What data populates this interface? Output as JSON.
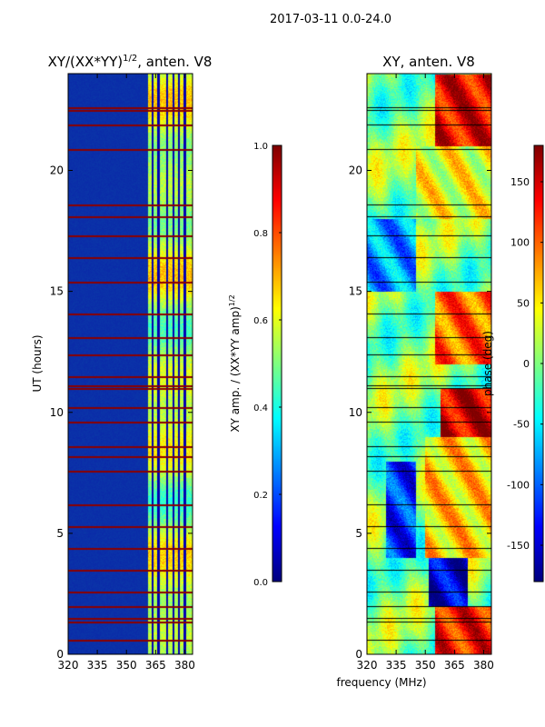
{
  "figure_title": "2017-03-11 0.0-24.0",
  "colors": {
    "jet": [
      "#00007f",
      "#0000ff",
      "#007fff",
      "#00ffff",
      "#7fff7f",
      "#ffff00",
      "#ff7f00",
      "#ff0000",
      "#7f0000"
    ],
    "background_amp": "#0a2aa8",
    "flag_amp": "#8b0000",
    "flag_phase": "#000000"
  },
  "chart_data": [
    {
      "type": "heatmap",
      "title_base": "XY/(XX*YY)",
      "title_exp": "1/2",
      "title_suffix": ", anten. V8",
      "xlabel": "",
      "ylabel": "UT (hours)",
      "xlim": [
        320,
        384
      ],
      "ylim": [
        0,
        24
      ],
      "xticks": [
        320,
        335,
        350,
        365,
        380
      ],
      "yticks": [
        0,
        5,
        10,
        15,
        20
      ],
      "colorbar": {
        "label_base": "XY amp. / (XX*YY amp)",
        "label_exp": "1/2",
        "range": [
          0.0,
          1.0
        ],
        "ticks": [
          "0.0",
          "0.2",
          "0.4",
          "0.6",
          "0.8",
          "1.0"
        ],
        "tick_values": [
          0.0,
          0.2,
          0.4,
          0.6,
          0.8,
          1.0
        ]
      },
      "quiet_band_mhz": [
        320,
        361
      ],
      "active_band_mhz": [
        361,
        384
      ],
      "active_band_value_range": [
        0.3,
        0.75
      ],
      "flagged_hours": [
        0.6,
        1.35,
        1.5,
        2.0,
        2.6,
        3.5,
        4.4,
        5.3,
        6.2,
        7.6,
        8.2,
        8.6,
        9.6,
        10.2,
        11.0,
        11.1,
        11.5,
        12.4,
        13.1,
        14.1,
        15.4,
        16.4,
        17.3,
        18.1,
        18.6,
        20.9,
        21.9,
        22.5,
        22.6
      ],
      "noisy_channel_mhz": [
        363.5,
        366.5,
        371,
        374,
        377,
        380
      ]
    },
    {
      "type": "heatmap",
      "title": "XY, anten. V8",
      "xlabel": "frequency (MHz)",
      "ylabel": "",
      "xlim": [
        320,
        384
      ],
      "ylim": [
        0,
        24
      ],
      "xticks": [
        320,
        335,
        350,
        365,
        380
      ],
      "yticks": [
        0,
        5,
        10,
        15,
        20
      ],
      "colorbar": {
        "label": "phase (deg)",
        "range": [
          -180,
          180
        ],
        "ticks": [
          "-150",
          "-100",
          "-50",
          "0",
          "50",
          "100",
          "150"
        ],
        "tick_values": [
          -150,
          -100,
          -50,
          0,
          50,
          100,
          150
        ]
      },
      "flagged_hours": [
        0.6,
        1.35,
        1.5,
        2.0,
        2.6,
        3.5,
        4.4,
        5.3,
        6.2,
        7.6,
        8.2,
        8.6,
        9.6,
        10.2,
        11.0,
        11.1,
        11.5,
        12.4,
        13.1,
        14.1,
        15.4,
        16.4,
        17.3,
        18.1,
        18.6,
        20.9,
        21.9,
        22.5,
        22.6
      ],
      "phase_regions": [
        {
          "hours": [
            0,
            2
          ],
          "mhz": [
            355,
            384
          ],
          "deg": 130
        },
        {
          "hours": [
            2,
            4
          ],
          "mhz": [
            352,
            372
          ],
          "deg": -150
        },
        {
          "hours": [
            4,
            8
          ],
          "mhz": [
            330,
            345
          ],
          "deg": -120
        },
        {
          "hours": [
            4,
            9
          ],
          "mhz": [
            350,
            384
          ],
          "deg": 60
        },
        {
          "hours": [
            9,
            11
          ],
          "mhz": [
            358,
            384
          ],
          "deg": 150
        },
        {
          "hours": [
            12,
            15
          ],
          "mhz": [
            355,
            384
          ],
          "deg": 100
        },
        {
          "hours": [
            15,
            18
          ],
          "mhz": [
            320,
            345
          ],
          "deg": -80
        },
        {
          "hours": [
            18,
            21
          ],
          "mhz": [
            345,
            384
          ],
          "deg": 40
        },
        {
          "hours": [
            21,
            24
          ],
          "mhz": [
            355,
            384
          ],
          "deg": 140
        }
      ]
    }
  ]
}
